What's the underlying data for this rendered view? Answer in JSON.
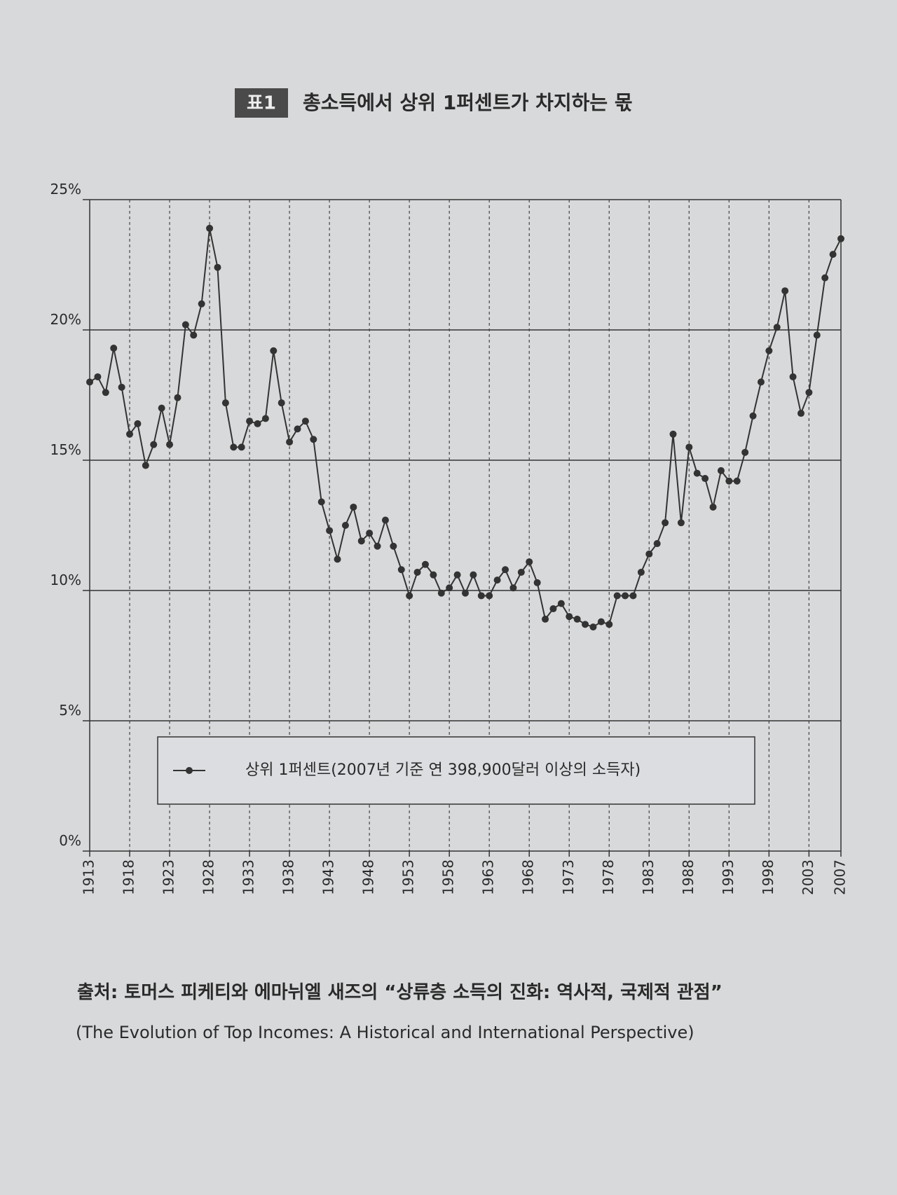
{
  "chart_data": {
    "type": "line",
    "badge": "표1",
    "title": "총소득에서 상위 1퍼센트가 차지하는 몫",
    "x": [
      1913,
      1914,
      1915,
      1916,
      1917,
      1918,
      1919,
      1920,
      1921,
      1922,
      1923,
      1924,
      1925,
      1926,
      1927,
      1928,
      1929,
      1930,
      1931,
      1932,
      1933,
      1934,
      1935,
      1936,
      1937,
      1938,
      1939,
      1940,
      1941,
      1942,
      1943,
      1944,
      1945,
      1946,
      1947,
      1948,
      1949,
      1950,
      1951,
      1952,
      1953,
      1954,
      1955,
      1956,
      1957,
      1958,
      1959,
      1960,
      1961,
      1962,
      1963,
      1964,
      1965,
      1966,
      1967,
      1968,
      1969,
      1970,
      1971,
      1972,
      1973,
      1974,
      1975,
      1976,
      1977,
      1978,
      1979,
      1980,
      1981,
      1982,
      1983,
      1984,
      1985,
      1986,
      1987,
      1988,
      1989,
      1990,
      1991,
      1992,
      1993,
      1994,
      1995,
      1996,
      1997,
      1998,
      1999,
      2000,
      2001,
      2002,
      2003,
      2004,
      2005,
      2006,
      2007
    ],
    "series": [
      {
        "name": "상위 1퍼센트(2007년 기준 연 398,900달러 이상의 소득자)",
        "color": "#333333",
        "values": [
          18.0,
          18.2,
          17.6,
          19.3,
          17.8,
          16.0,
          16.4,
          14.8,
          15.6,
          17.0,
          15.6,
          17.4,
          20.2,
          19.8,
          21.0,
          23.9,
          22.4,
          17.2,
          15.5,
          15.5,
          16.5,
          16.4,
          16.6,
          19.2,
          17.2,
          15.7,
          16.2,
          16.5,
          15.8,
          13.4,
          12.3,
          11.2,
          12.5,
          13.2,
          11.9,
          12.2,
          11.7,
          12.7,
          11.7,
          10.8,
          9.8,
          10.7,
          11.0,
          10.6,
          9.9,
          10.1,
          10.6,
          9.9,
          10.6,
          9.8,
          9.8,
          10.4,
          10.8,
          10.1,
          10.7,
          11.1,
          10.3,
          8.9,
          9.3,
          9.5,
          9.0,
          8.9,
          8.7,
          8.6,
          8.8,
          8.7,
          9.8,
          9.8,
          9.8,
          10.7,
          11.4,
          11.8,
          12.6,
          16.0,
          12.6,
          15.5,
          14.5,
          14.3,
          13.2,
          14.6,
          14.2,
          14.2,
          15.3,
          16.7,
          18.0,
          19.2,
          20.1,
          21.5,
          18.2,
          16.8,
          17.6,
          19.8,
          22.0,
          22.9,
          23.5
        ]
      }
    ],
    "xlim": [
      1913,
      2007
    ],
    "xticks": [
      1913,
      1918,
      1923,
      1928,
      1933,
      1938,
      1943,
      1948,
      1953,
      1958,
      1963,
      1968,
      1973,
      1978,
      1983,
      1988,
      1993,
      1998,
      2003,
      2007
    ],
    "ylim": [
      0,
      25
    ],
    "yticks": [
      {
        "value": 0,
        "label": "0%"
      },
      {
        "value": 5,
        "label": "5%"
      },
      {
        "value": 10,
        "label": "10%"
      },
      {
        "value": 15,
        "label": "15%"
      },
      {
        "value": 20,
        "label": "20%"
      },
      {
        "value": 25,
        "label": "25%"
      }
    ],
    "grid": true,
    "source": "출처: 토머스 피케티와 에마뉘엘 새즈의 “상류층 소득의 진화: 역사적, 국제적 관점”",
    "source_en": "(The Evolution of Top Incomes: A Historical and International Perspective)"
  }
}
